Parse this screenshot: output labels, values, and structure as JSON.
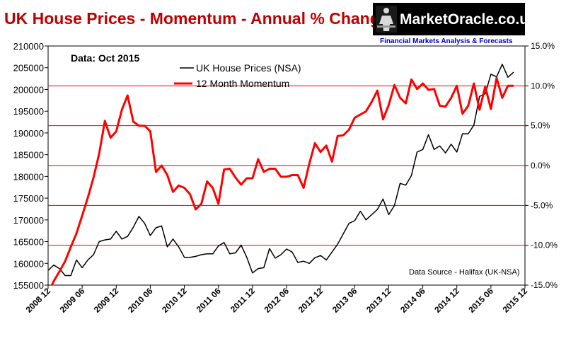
{
  "header": {
    "title": "UK House Prices - Momentum - Annual % Change",
    "logo_text": "MarketOracle.co.uk",
    "logo_tagline": "Financial Markets Analysis & Forecasts"
  },
  "chart_data": {
    "type": "line",
    "title": "UK House Prices - Momentum - Annual % Change",
    "annotation": "Data:  Oct 2015",
    "source": "Data Source - Halifax (UK-NSA)",
    "x_tick_labels": [
      "2008 12",
      "2009 06",
      "2009 12",
      "2010 06",
      "2010 12",
      "2011 06",
      "2011 12",
      "2012 06",
      "2012 12",
      "2013 06",
      "2013 12",
      "2014 06",
      "2014 12",
      "2015 06",
      "2015 12"
    ],
    "x_range": [
      0,
      84
    ],
    "y_left": {
      "range": [
        155000,
        210000
      ],
      "tick_labels": [
        "155000",
        "160000",
        "165000",
        "170000",
        "175000",
        "180000",
        "185000",
        "190000",
        "195000",
        "200000",
        "205000",
        "210000"
      ]
    },
    "y_right": {
      "range": [
        -15,
        15
      ],
      "tick_labels": [
        "-15.0%",
        "-10.0%",
        "-5.0%",
        "0.0%",
        "5.0%",
        "10.0%",
        "15.0%"
      ],
      "gridlines_at": [
        -10,
        -5,
        0,
        5,
        10
      ]
    },
    "legend_position": "top-center",
    "series": [
      {
        "name": "UK House Prices (NSA)",
        "axis": "left",
        "color": "#000000",
        "values": [
          158400,
          159600,
          158800,
          157200,
          157200,
          160800,
          159000,
          160800,
          162000,
          165000,
          165400,
          165600,
          167400,
          165600,
          166200,
          168300,
          170800,
          169200,
          166400,
          168200,
          168600,
          163800,
          165600,
          163800,
          161400,
          161400,
          161600,
          162000,
          162200,
          162200,
          164000,
          164800,
          162200,
          162400,
          164200,
          161400,
          157800,
          158800,
          159000,
          163400,
          161200,
          162000,
          163300,
          162600,
          160200,
          160500,
          160000,
          161300,
          161800,
          160800,
          162600,
          164400,
          166800,
          169200,
          169800,
          172000,
          170000,
          171200,
          172400,
          174800,
          171200,
          173300,
          178400,
          178000,
          180200,
          185600,
          186200,
          189600,
          186200,
          187000,
          185400,
          187400,
          185600,
          189800,
          189800,
          191800,
          198400,
          199000,
          203500,
          202900,
          205800,
          202800,
          204000
        ]
      },
      {
        "name": "12 Month Momentum",
        "axis": "right",
        "color": "#ff0000",
        "values": [
          -16.0,
          -14.5,
          -13.3,
          -12.0,
          -10.2,
          -8.5,
          -6.3,
          -4.0,
          -1.5,
          1.5,
          5.6,
          3.5,
          4.3,
          7.0,
          8.8,
          5.5,
          5.0,
          5.0,
          4.3,
          -0.8,
          0.0,
          -1.2,
          -3.3,
          -2.5,
          -2.8,
          -3.6,
          -5.5,
          -4.8,
          -2.0,
          -2.8,
          -4.8,
          -0.5,
          -0.4,
          -1.5,
          -2.4,
          -1.6,
          -1.6,
          0.8,
          -0.8,
          -0.4,
          -0.4,
          -1.4,
          -1.4,
          -1.2,
          -1.2,
          -2.8,
          0.2,
          2.8,
          1.7,
          2.5,
          0.5,
          3.7,
          3.8,
          4.5,
          6.0,
          6.4,
          6.8,
          8.0,
          9.4,
          5.8,
          7.6,
          10.1,
          8.5,
          7.8,
          10.8,
          9.6,
          10.3,
          9.5,
          9.6,
          7.5,
          7.4,
          8.5,
          10.0,
          6.5,
          7.5,
          10.3,
          7.0,
          9.9,
          7.1,
          11.0,
          8.5,
          10.0,
          10.0
        ]
      }
    ]
  }
}
